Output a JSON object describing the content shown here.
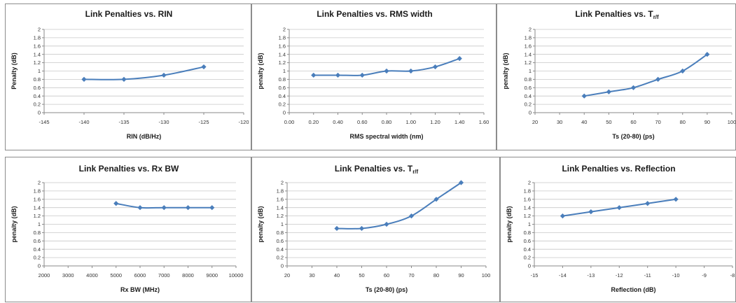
{
  "colors": {
    "series": "#4a7ebb",
    "grid": "#c8c8c8",
    "axis": "#8a8a8a"
  },
  "chart_data": [
    {
      "type": "line",
      "title": "Link Penalties vs. RIN",
      "title_sub": "",
      "xlabel": "RIN (dB/Hz)",
      "ylabel": "Penalty (dB)",
      "xlim": [
        -145,
        -120
      ],
      "xticks": [
        -145,
        -140,
        -135,
        -130,
        -125,
        -120
      ],
      "xtick_labels": [
        "-145",
        "-140",
        "-135",
        "-130",
        "-125",
        "-120"
      ],
      "ylim": [
        0,
        2
      ],
      "yticks": [
        0,
        0.2,
        0.4,
        0.6,
        0.8,
        1,
        1.2,
        1.4,
        1.6,
        1.8,
        2
      ],
      "ytick_labels": [
        "0",
        "0.2",
        "0.4",
        "0.6",
        "0.8",
        "1",
        "1.2",
        "1.4",
        "1.6",
        "1.8",
        "2"
      ],
      "grid": true,
      "x": [
        -140,
        -135,
        -130,
        -125
      ],
      "y": [
        0.8,
        0.8,
        0.9,
        1.1
      ]
    },
    {
      "type": "line",
      "title": "Link Penalties vs. RMS width",
      "title_sub": "",
      "xlabel": "RMS spectral width (nm)",
      "ylabel": "penalty (dB)",
      "xlim": [
        0,
        1.6
      ],
      "xticks": [
        0,
        0.2,
        0.4,
        0.6,
        0.8,
        1.0,
        1.2,
        1.4,
        1.6
      ],
      "xtick_labels": [
        "0.00",
        "0.20",
        "0.40",
        "0.60",
        "0.80",
        "1.00",
        "1.20",
        "1.40",
        "1.60"
      ],
      "ylim": [
        0,
        2
      ],
      "yticks": [
        0,
        0.2,
        0.4,
        0.6,
        0.8,
        1,
        1.2,
        1.4,
        1.6,
        1.8,
        2
      ],
      "ytick_labels": [
        "0",
        "0.2",
        "0.4",
        "0.6",
        "0.8",
        "1",
        "1.2",
        "1.4",
        "1.6",
        "1.8",
        "2"
      ],
      "grid": true,
      "x": [
        0.2,
        0.4,
        0.6,
        0.8,
        1.0,
        1.2,
        1.4
      ],
      "y": [
        0.9,
        0.9,
        0.9,
        1.0,
        1.0,
        1.1,
        1.3
      ]
    },
    {
      "type": "line",
      "title": "Link Penalties vs. T",
      "title_sub": "r/f",
      "xlabel": "Ts (20-80) (ps)",
      "ylabel": "penalty (dB)",
      "xlim": [
        20,
        100
      ],
      "xticks": [
        20,
        30,
        40,
        50,
        60,
        70,
        80,
        90,
        100
      ],
      "xtick_labels": [
        "20",
        "30",
        "40",
        "50",
        "60",
        "70",
        "80",
        "90",
        "100"
      ],
      "ylim": [
        0,
        2
      ],
      "yticks": [
        0,
        0.2,
        0.4,
        0.6,
        0.8,
        1,
        1.2,
        1.4,
        1.6,
        1.8,
        2
      ],
      "ytick_labels": [
        "0",
        "0.2",
        "0.4",
        "0.6",
        "0.8",
        "1",
        "1.2",
        "1.4",
        "1.6",
        "1.8",
        "2"
      ],
      "grid": true,
      "x": [
        40,
        50,
        60,
        70,
        80,
        90
      ],
      "y": [
        0.4,
        0.5,
        0.6,
        0.8,
        1.0,
        1.4
      ]
    },
    {
      "type": "line",
      "title": "Link Penalties vs. Rx BW",
      "title_sub": "",
      "xlabel": "Rx BW (MHz)",
      "ylabel": "penalty (dB)",
      "xlim": [
        2000,
        10000
      ],
      "xticks": [
        2000,
        3000,
        4000,
        5000,
        6000,
        7000,
        8000,
        9000,
        10000
      ],
      "xtick_labels": [
        "2000",
        "3000",
        "4000",
        "5000",
        "6000",
        "7000",
        "8000",
        "9000",
        "10000"
      ],
      "ylim": [
        0,
        2
      ],
      "yticks": [
        0,
        0.2,
        0.4,
        0.6,
        0.8,
        1,
        1.2,
        1.4,
        1.6,
        1.8,
        2
      ],
      "ytick_labels": [
        "0",
        "0.2",
        "0.4",
        "0.6",
        "0.8",
        "1",
        "1.2",
        "1.4",
        "1.6",
        "1.8",
        "2"
      ],
      "grid": true,
      "x": [
        5000,
        6000,
        7000,
        8000,
        9000
      ],
      "y": [
        1.5,
        1.4,
        1.4,
        1.4,
        1.4
      ]
    },
    {
      "type": "line",
      "title": "Link Penalties vs. T",
      "title_sub": "r/f",
      "xlabel": "Ts (20-80) (ps)",
      "ylabel": "penalty (dB)",
      "xlim": [
        20,
        100
      ],
      "xticks": [
        20,
        30,
        40,
        50,
        60,
        70,
        80,
        90,
        100
      ],
      "xtick_labels": [
        "20",
        "30",
        "40",
        "50",
        "60",
        "70",
        "80",
        "90",
        "100"
      ],
      "ylim": [
        0,
        2
      ],
      "yticks": [
        0,
        0.2,
        0.4,
        0.6,
        0.8,
        1,
        1.2,
        1.4,
        1.6,
        1.8,
        2
      ],
      "ytick_labels": [
        "0",
        "0.2",
        "0.4",
        "0.6",
        "0.8",
        "1",
        "1.2",
        "1.4",
        "1.6",
        "1.8",
        "2"
      ],
      "grid": true,
      "x": [
        40,
        50,
        60,
        70,
        80,
        90
      ],
      "y": [
        0.9,
        0.9,
        1.0,
        1.2,
        1.6,
        2.0
      ]
    },
    {
      "type": "line",
      "title": "Link Penalties vs. Reflection",
      "title_sub": "",
      "xlabel": "Reflection (dB)",
      "ylabel": "penalty (dB)",
      "xlim": [
        -15,
        -8
      ],
      "xticks": [
        -15,
        -14,
        -13,
        -12,
        -11,
        -10,
        -9,
        -8
      ],
      "xtick_labels": [
        "-15",
        "-14",
        "-13",
        "-12",
        "-11",
        "-10",
        "-9",
        "-8"
      ],
      "ylim": [
        0,
        2
      ],
      "yticks": [
        0,
        0.2,
        0.4,
        0.6,
        0.8,
        1,
        1.2,
        1.4,
        1.6,
        1.8,
        2
      ],
      "ytick_labels": [
        "0",
        "0.2",
        "0.4",
        "0.6",
        "0.8",
        "1",
        "1.2",
        "1.4",
        "1.6",
        "1.8",
        "2"
      ],
      "grid": true,
      "x": [
        -14,
        -13,
        -12,
        -11,
        -10
      ],
      "y": [
        1.2,
        1.3,
        1.4,
        1.5,
        1.6
      ]
    }
  ]
}
